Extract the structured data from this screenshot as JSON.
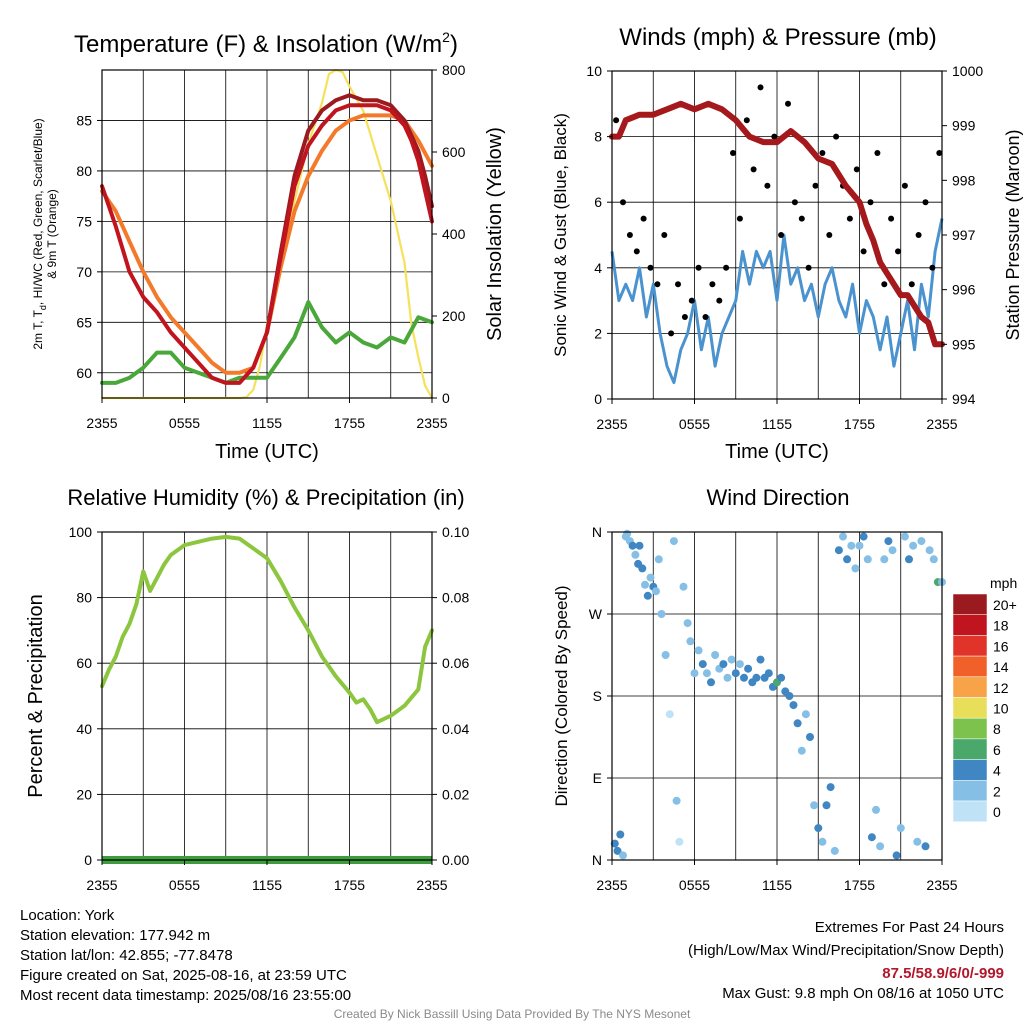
{
  "colors": {
    "red": "#c0151f",
    "dark_red": "#9b1a1f",
    "orange": "#f47a2b",
    "green": "#4aa83b",
    "yellow": "#f5e15a",
    "wind_blue": "#4a93cf",
    "gust_black": "#000000",
    "pressure_maroon": "#a5191c",
    "rh_green": "#8cc63f",
    "precip_green": "#3e9b3e"
  },
  "chart_data": [
    {
      "type": "line",
      "title_prefix": "Temperature (F) & Insolation (W/m",
      "title_sup": "2",
      "title_suffix": ")",
      "xlabel": "Time (UTC)",
      "ylabel_line1": "2m T, T",
      "ylabel_sub": "d",
      "ylabel_line1b": ", HI/WC (Red, Green, Scarlet/Blue)",
      "ylabel_line2": "& 9m T (Orange)",
      "ylabel_right": "Solar Insolation (Yellow)",
      "x_ticks": [
        "2355",
        "0555",
        "1155",
        "1755",
        "2355"
      ],
      "xlim": [
        0,
        24
      ],
      "ylim": [
        57.5,
        90.0
      ],
      "y_ticks": [
        60,
        65,
        70,
        75,
        80,
        85
      ],
      "y2lim": [
        0,
        800
      ],
      "y2_ticks": [
        0,
        200,
        400,
        600,
        800
      ],
      "grid": true,
      "series": [
        {
          "key": "temp_2m",
          "color": "#c0151f",
          "axis": "left",
          "x": [
            0,
            1,
            2,
            3,
            4,
            5,
            6,
            7,
            8,
            9,
            10,
            11,
            12,
            13,
            14,
            15,
            16,
            17,
            18,
            19,
            20,
            21,
            22,
            22.5,
            23,
            23.5,
            24
          ],
          "y": [
            78.5,
            74.5,
            70.0,
            67.5,
            66.0,
            64.0,
            62.5,
            61.0,
            59.5,
            59.0,
            59.0,
            60.5,
            64.0,
            71.5,
            78.5,
            82.5,
            84.5,
            86.0,
            86.5,
            86.5,
            86.5,
            86.0,
            84.5,
            83.0,
            81.0,
            78.0,
            75.0
          ]
        },
        {
          "key": "heat_index",
          "color": "#9b1a1f",
          "axis": "left",
          "x": [
            12,
            13,
            14,
            15,
            16,
            17,
            18,
            19,
            20,
            21,
            22,
            22.5,
            23,
            23.5,
            24
          ],
          "y": [
            64.0,
            72.0,
            79.5,
            84.0,
            86.0,
            87.0,
            87.5,
            87.0,
            87.0,
            86.5,
            85.0,
            83.5,
            82.0,
            79.5,
            76.5
          ]
        },
        {
          "key": "temp_9m",
          "color": "#f47a2b",
          "axis": "left",
          "x": [
            0,
            1,
            2,
            3,
            4,
            5,
            6,
            7,
            8,
            9,
            10,
            11,
            12,
            13,
            14,
            15,
            16,
            17,
            18,
            19,
            20,
            21,
            22,
            23,
            24
          ],
          "y": [
            78.0,
            76.0,
            73.0,
            70.0,
            67.5,
            65.5,
            64.0,
            62.5,
            61.0,
            60.0,
            60.0,
            60.5,
            64.0,
            70.5,
            76.0,
            79.5,
            82.0,
            84.0,
            85.0,
            85.5,
            85.5,
            85.5,
            85.0,
            83.0,
            80.5
          ]
        },
        {
          "key": "dewpoint",
          "color": "#4aa83b",
          "axis": "left",
          "x": [
            0,
            1,
            2,
            3,
            4,
            5,
            6,
            7,
            8,
            9,
            10,
            11,
            12,
            13,
            14,
            15,
            16,
            17,
            18,
            19,
            20,
            21,
            22,
            23,
            24
          ],
          "y": [
            59.0,
            59.0,
            59.5,
            60.5,
            62.0,
            62.0,
            60.5,
            60.0,
            59.5,
            59.0,
            59.5,
            59.5,
            59.5,
            61.5,
            63.5,
            67.0,
            64.5,
            63.0,
            64.0,
            63.0,
            62.5,
            63.5,
            63.0,
            65.5,
            65.0
          ]
        },
        {
          "key": "solar",
          "color": "#f5e15a",
          "axis": "right",
          "x": [
            0,
            1,
            2,
            3,
            4,
            5,
            6,
            7,
            8,
            9,
            10,
            10.5,
            11,
            11.5,
            12,
            13,
            14,
            15,
            16,
            16.5,
            17,
            17.5,
            18,
            19,
            20,
            21,
            22,
            22.5,
            23,
            23.5,
            24
          ],
          "y": [
            0,
            0,
            0,
            0,
            0,
            0,
            0,
            0,
            0,
            0,
            0,
            2,
            20,
            80,
            180,
            320,
            480,
            620,
            720,
            790,
            800,
            795,
            760,
            700,
            590,
            480,
            330,
            180,
            100,
            30,
            0
          ]
        }
      ]
    },
    {
      "type": "line",
      "title": "Winds (mph) & Pressure (mb)",
      "xlabel": "Time (UTC)",
      "ylabel": "Sonic Wind & Gust (Blue, Black)",
      "ylabel_right": "Station Pressure (Maroon)",
      "x_ticks": [
        "2355",
        "0555",
        "1155",
        "1755",
        "2355"
      ],
      "xlim": [
        0,
        24
      ],
      "ylim": [
        0,
        10
      ],
      "y_ticks": [
        0,
        2,
        4,
        6,
        8,
        10
      ],
      "y2lim": [
        994,
        1000
      ],
      "y2_ticks": [
        994,
        995,
        996,
        997,
        998,
        999,
        1000
      ],
      "grid": true,
      "series": [
        {
          "key": "wind_speed",
          "color": "#4a93cf",
          "axis": "left",
          "x": [
            0,
            0.5,
            1,
            1.5,
            2,
            2.5,
            3,
            3.5,
            4,
            4.5,
            5,
            5.5,
            6,
            6.5,
            7,
            7.5,
            8,
            8.5,
            9,
            9.5,
            10,
            10.5,
            11,
            11.5,
            12,
            12.5,
            13,
            13.5,
            14,
            14.5,
            15,
            15.5,
            16,
            16.5,
            17,
            17.5,
            18,
            18.5,
            19,
            19.5,
            20,
            20.5,
            21,
            21.5,
            22,
            22.5,
            23,
            23.5,
            24
          ],
          "y": [
            4.5,
            3.0,
            3.5,
            3.0,
            4.0,
            2.5,
            3.5,
            2.0,
            1.0,
            0.5,
            1.5,
            2.0,
            3.0,
            1.5,
            2.5,
            1.0,
            2.0,
            2.5,
            3.0,
            4.5,
            3.5,
            4.5,
            4.0,
            4.5,
            3.0,
            5.0,
            3.5,
            4.0,
            3.0,
            3.5,
            2.5,
            3.5,
            4.0,
            3.0,
            2.5,
            3.5,
            2.0,
            3.0,
            2.5,
            1.5,
            2.5,
            1.0,
            2.0,
            3.0,
            1.5,
            3.5,
            2.5,
            4.5,
            5.5
          ]
        },
        {
          "key": "wind_gust",
          "color": "#000000",
          "axis": "left",
          "x": [
            0.3,
            0.8,
            1.3,
            1.8,
            2.3,
            2.8,
            3.3,
            3.8,
            4.3,
            4.8,
            5.3,
            5.8,
            6.3,
            6.8,
            7.3,
            7.8,
            8.3,
            8.8,
            9.3,
            9.8,
            10.3,
            10.8,
            11.3,
            11.8,
            12.3,
            12.8,
            13.3,
            13.8,
            14.3,
            14.8,
            15.3,
            15.8,
            16.3,
            16.8,
            17.3,
            17.8,
            18.3,
            18.8,
            19.3,
            19.8,
            20.3,
            20.8,
            21.3,
            21.8,
            22.3,
            22.8,
            23.3,
            23.8
          ],
          "y": [
            8.5,
            6.0,
            5.0,
            4.5,
            5.5,
            4.0,
            3.5,
            5.0,
            2.0,
            3.5,
            2.5,
            3.0,
            4.0,
            2.5,
            3.5,
            3.0,
            4.0,
            7.5,
            5.5,
            8.5,
            7.0,
            9.5,
            6.5,
            8.0,
            5.0,
            9.0,
            6.0,
            5.5,
            4.0,
            6.5,
            7.5,
            5.0,
            8.0,
            6.5,
            5.5,
            7.0,
            4.5,
            6.0,
            7.5,
            3.5,
            5.5,
            4.5,
            6.5,
            3.5,
            5.0,
            6.0,
            4.0,
            7.5
          ]
        },
        {
          "key": "pressure",
          "color": "#a5191c",
          "axis": "right",
          "x": [
            0,
            0.5,
            1,
            2,
            3,
            4,
            5,
            6,
            7,
            8,
            9,
            10,
            11,
            12,
            13,
            13.5,
            14,
            15,
            16,
            17,
            18,
            18.5,
            19,
            19.5,
            20,
            21,
            21.5,
            22,
            22.5,
            23,
            23.5,
            24
          ],
          "y": [
            998.8,
            998.8,
            999.1,
            999.2,
            999.2,
            999.3,
            999.4,
            999.3,
            999.4,
            999.3,
            999.1,
            998.8,
            998.7,
            998.7,
            998.9,
            998.8,
            998.7,
            998.4,
            998.3,
            997.9,
            997.6,
            997.2,
            996.9,
            996.5,
            996.3,
            995.9,
            995.9,
            995.7,
            995.5,
            995.4,
            995.0,
            995.0
          ]
        }
      ]
    },
    {
      "type": "line",
      "title": "Relative Humidity (%) & Precipitation (in)",
      "ylabel": "Percent & Precipitation",
      "x_ticks": [
        "2355",
        "0555",
        "1155",
        "1755",
        "2355"
      ],
      "xlim": [
        0,
        24
      ],
      "ylim": [
        0,
        100
      ],
      "y_ticks": [
        0,
        20,
        40,
        60,
        80,
        100
      ],
      "y2lim": [
        0,
        0.1
      ],
      "y2_ticks": [
        "0.00",
        "0.02",
        "0.04",
        "0.06",
        "0.08",
        "0.10"
      ],
      "grid": true,
      "series": [
        {
          "key": "rh",
          "color": "#8cc63f",
          "axis": "left",
          "x": [
            0,
            0.5,
            1,
            1.5,
            2,
            2.5,
            3,
            3.5,
            4,
            4.5,
            5,
            6,
            7,
            8,
            9,
            10,
            11,
            12,
            13,
            14,
            15,
            16,
            17,
            18,
            18.5,
            19,
            19.5,
            20,
            21,
            22,
            23,
            23.5,
            24
          ],
          "y": [
            53,
            58,
            62,
            68,
            72,
            78,
            88,
            82,
            86,
            90,
            93,
            96,
            97,
            98,
            98.5,
            98,
            95,
            92,
            85,
            77,
            70,
            62,
            56,
            51,
            48,
            49,
            46,
            42,
            44,
            47,
            52,
            65,
            70
          ]
        },
        {
          "key": "precip",
          "color": "#3e9b3e",
          "axis": "left",
          "x": [
            0,
            24
          ],
          "y": [
            0,
            0
          ]
        }
      ]
    },
    {
      "type": "scatter",
      "title": "Wind Direction",
      "ylabel": "Direction (Colored By Speed)",
      "x_ticks": [
        "2355",
        "0555",
        "1155",
        "1755",
        "2355"
      ],
      "xlim": [
        0,
        24
      ],
      "ylim": [
        0,
        360
      ],
      "y_ticks": [
        "N",
        "E",
        "S",
        "W",
        "N"
      ],
      "grid": true,
      "legend": {
        "position": "right",
        "title": "mph",
        "labels": [
          "20+",
          "18",
          "16",
          "14",
          "12",
          "10",
          "8",
          "6",
          "4",
          "2",
          "0"
        ],
        "colors": [
          "#9b1a1f",
          "#c0151f",
          "#e0332a",
          "#f06028",
          "#f8a347",
          "#e8de5a",
          "#7dc24c",
          "#4aa86b",
          "#3f86c2",
          "#86bfe6",
          "#bfe2f7"
        ]
      },
      "series": [
        {
          "key": "direction",
          "color": "#4a93cf",
          "x": [
            0.2,
            0.4,
            0.6,
            0.8,
            1.0,
            1.1,
            1.3,
            1.5,
            1.7,
            1.9,
            2.0,
            2.2,
            2.4,
            2.6,
            2.8,
            3.0,
            3.2,
            3.4,
            3.6,
            3.9,
            4.2,
            4.5,
            4.7,
            4.9,
            5.2,
            5.5,
            5.7,
            6.0,
            6.3,
            6.6,
            6.9,
            7.2,
            7.5,
            7.8,
            8.1,
            8.4,
            8.7,
            9.0,
            9.3,
            9.6,
            9.9,
            10.2,
            10.5,
            10.8,
            11.1,
            11.4,
            11.7,
            12.0,
            12.3,
            12.6,
            12.9,
            13.2,
            13.5,
            13.8,
            14.1,
            14.4,
            14.7,
            15.0,
            15.3,
            15.6,
            15.9,
            16.2,
            16.5,
            16.8,
            17.1,
            17.4,
            17.7,
            18.0,
            18.3,
            18.6,
            18.9,
            19.2,
            19.5,
            19.8,
            20.1,
            20.4,
            20.7,
            21.0,
            21.3,
            21.6,
            21.9,
            22.2,
            22.5,
            22.8,
            23.1,
            23.4,
            23.7,
            24.0
          ],
          "y": [
            18,
            10,
            28,
            5,
            355,
            358,
            350,
            345,
            335,
            325,
            345,
            320,
            302,
            290,
            310,
            300,
            295,
            330,
            270,
            225,
            160,
            350,
            65,
            20,
            300,
            260,
            240,
            205,
            230,
            215,
            205,
            195,
            225,
            210,
            215,
            200,
            220,
            205,
            215,
            200,
            210,
            195,
            200,
            220,
            200,
            205,
            190,
            195,
            200,
            185,
            180,
            170,
            150,
            120,
            160,
            135,
            60,
            35,
            20,
            60,
            80,
            10,
            340,
            355,
            330,
            345,
            320,
            345,
            355,
            330,
            25,
            55,
            15,
            330,
            350,
            340,
            5,
            35,
            355,
            330,
            345,
            20,
            350,
            15,
            340,
            330,
            305,
            305
          ],
          "speed": [
            4,
            4,
            3,
            2,
            2,
            1,
            2,
            3,
            2,
            4,
            3,
            3,
            2,
            4,
            2,
            3,
            2,
            1,
            2,
            1,
            0,
            2,
            1,
            0,
            1,
            2,
            1,
            2,
            2,
            3,
            2,
            3,
            2,
            2,
            3,
            2,
            2,
            3,
            2,
            3,
            4,
            3,
            4,
            3,
            3,
            4,
            4,
            5,
            4,
            3,
            4,
            3,
            3,
            2,
            2,
            3,
            2,
            3,
            2,
            4,
            3,
            2,
            3,
            2,
            4,
            2,
            1,
            2,
            3,
            2,
            3,
            2,
            2,
            1,
            3,
            2,
            3,
            2,
            2,
            3,
            2,
            1,
            2,
            3,
            2,
            2,
            6,
            2
          ]
        }
      ]
    }
  ],
  "info": {
    "location": "Location: York",
    "elevation": "Station elevation: 177.942 m",
    "latlon": "Station lat/lon: 42.855; -77.8478",
    "created": "Figure created on Sat, 2025-08-16, at 23:59 UTC",
    "recent": "Most recent data timestamp: 2025/08/16 23:55:00"
  },
  "extremes": {
    "title": "Extremes For Past 24 Hours",
    "subtitle": "(High/Low/Max Wind/Precipitation/Snow Depth)",
    "values": "87.5/58.9/6/0/-999",
    "gust": "Max Gust: 9.8 mph On 08/16 at 1050 UTC"
  },
  "credit": "Created By Nick Bassill Using Data Provided By The NYS Mesonet"
}
